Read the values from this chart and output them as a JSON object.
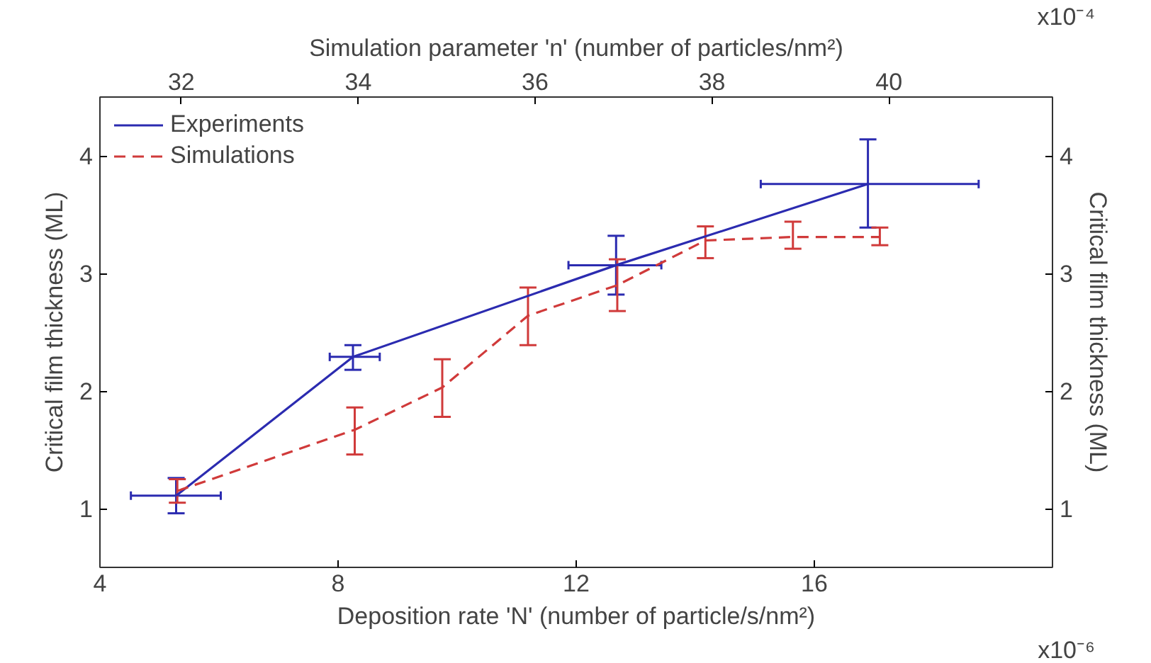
{
  "chart_data": {
    "type": "line",
    "xlabel": "Deposition rate 'N' (number of particle/s/nm²)",
    "x2label": "Simulation parameter 'n' (number of particles/nm²)",
    "ylabel": "Critical film thickness (ML)",
    "y2label": "Critical film thickness (ML)",
    "xlim": [
      4,
      20
    ],
    "xticks": [
      4,
      8,
      12,
      16
    ],
    "x2lim": [
      31.08,
      41.85
    ],
    "x2ticks": [
      32,
      34,
      36,
      38,
      40
    ],
    "ylim": [
      0.5,
      4.5
    ],
    "yticks": [
      1,
      2,
      3,
      4
    ],
    "y2lim": [
      0.5,
      4.5
    ],
    "y2ticks": [
      1,
      2,
      3,
      4
    ],
    "annotations": [
      "x10⁻⁴",
      "x10⁻⁶"
    ],
    "grid": false,
    "legend": "top left",
    "marker": "none",
    "series": [
      {
        "name": "Experiments",
        "color": "#2b2bb0",
        "line_style": "solid",
        "x": [
          5.28,
          8.25,
          12.67,
          16.9
        ],
        "values": [
          1.11,
          2.29,
          3.07,
          3.76
        ],
        "errors": [
          [
            0.96,
            1.26
          ],
          [
            2.18,
            2.39
          ],
          [
            2.82,
            3.32
          ],
          [
            3.39,
            4.14
          ]
        ],
        "xerrors": [
          [
            4.52,
            6.03
          ],
          [
            7.86,
            8.7
          ],
          [
            11.87,
            13.43
          ],
          [
            15.1,
            18.76
          ]
        ]
      },
      {
        "name": "Simulations",
        "color": "#d03a3a",
        "line_style": "dashed",
        "x": [
          5.3,
          8.28,
          9.75,
          11.19,
          12.69,
          14.17,
          15.64,
          17.1
        ],
        "values": [
          1.15,
          1.67,
          2.03,
          2.64,
          2.9,
          3.28,
          3.31,
          3.31
        ],
        "errors": [
          [
            1.05,
            1.25
          ],
          [
            1.46,
            1.86
          ],
          [
            1.78,
            2.27
          ],
          [
            2.39,
            2.88
          ],
          [
            2.68,
            3.12
          ],
          [
            3.13,
            3.4
          ],
          [
            3.21,
            3.44
          ],
          [
            3.24,
            3.39
          ]
        ]
      }
    ]
  }
}
